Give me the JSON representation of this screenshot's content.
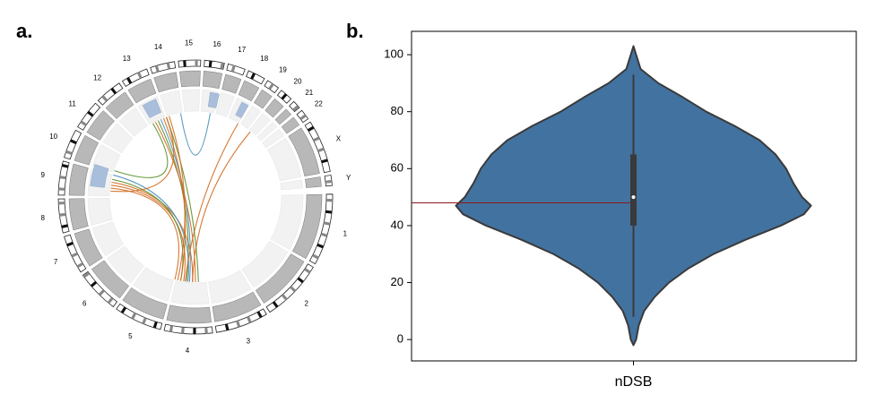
{
  "chart_data": [
    {
      "type": "circos",
      "panel_label": "a.",
      "categories": [
        "1",
        "2",
        "3",
        "4",
        "5",
        "6",
        "7",
        "8",
        "9",
        "10",
        "11",
        "12",
        "13",
        "14",
        "15",
        "16",
        "17",
        "18",
        "19",
        "20",
        "21",
        "22",
        "X",
        "Y"
      ]
    },
    {
      "type": "violin",
      "panel_label": "b.",
      "categories": [
        "nDSB"
      ],
      "color": "#4272a0",
      "ylim": [
        -7.5,
        108.2
      ],
      "yticks": [
        0,
        20,
        40,
        60,
        80,
        100
      ],
      "box": {
        "whisker_low": 8,
        "q1": 40,
        "median": 50,
        "q3": 65,
        "whisker_high": 93
      },
      "density": {
        "y": [
          103,
          100,
          95,
          90,
          85,
          80,
          75,
          70,
          65,
          60,
          55,
          50,
          47,
          44,
          40,
          35,
          30,
          25,
          20,
          15,
          10,
          5,
          0,
          -2
        ],
        "width": [
          0,
          0.015,
          0.04,
          0.14,
          0.28,
          0.41,
          0.57,
          0.71,
          0.8,
          0.86,
          0.9,
          0.95,
          1,
          0.96,
          0.83,
          0.63,
          0.45,
          0.31,
          0.2,
          0.12,
          0.06,
          0.03,
          0.015,
          0
        ]
      },
      "reference_line": {
        "value": 48,
        "color": "#8b1a1a"
      }
    }
  ]
}
